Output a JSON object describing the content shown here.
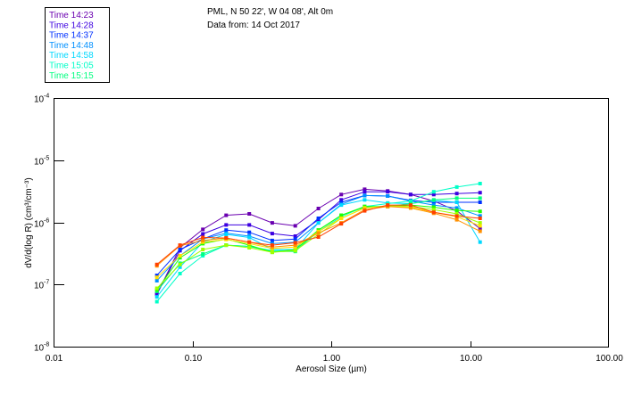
{
  "header": {
    "title_line1": "PML, N 50 22', W 04 08', Alt 0m",
    "title_line2": "Data from: 14 Oct 2017"
  },
  "chart_data": {
    "type": "line",
    "title": "PML, N 50 22', W 04 08', Alt 0m — Data from: 14 Oct 2017",
    "xlabel": "Aerosol Size (µm)",
    "ylabel": "dV/d(log R) (cm³/cm⁻³)",
    "xscale": "log",
    "yscale": "log",
    "xlim": [
      0.01,
      100
    ],
    "ylim": [
      1e-08,
      0.0001
    ],
    "x_ticks": [
      {
        "value": 0.01,
        "label": "0.01"
      },
      {
        "value": 0.1,
        "label": "0.10"
      },
      {
        "value": 1,
        "label": "1.00"
      },
      {
        "value": 10,
        "label": "10.00"
      },
      {
        "value": 100,
        "label": "100.00"
      }
    ],
    "y_ticks": [
      {
        "value": 0.0001,
        "base": "10",
        "exp": "-4"
      },
      {
        "value": 1e-05,
        "base": "10",
        "exp": "-5"
      },
      {
        "value": 1e-06,
        "base": "10",
        "exp": "-6"
      },
      {
        "value": 1e-07,
        "base": "10",
        "exp": "-7"
      },
      {
        "value": 1e-08,
        "base": "10",
        "exp": "-8"
      }
    ],
    "legend_position": "top-left",
    "grid": false,
    "x": [
      0.0555,
      0.0814,
      0.119,
      0.175,
      0.257,
      0.376,
      0.551,
      0.808,
      1.18,
      1.74,
      2.55,
      3.73,
      5.47,
      8.02,
      11.8
    ],
    "series": [
      {
        "name": "Time 14:23",
        "color": "#6a00b0",
        "values": [
          7e-08,
          3.9e-07,
          7.7e-07,
          1.3e-06,
          1.37e-06,
          9.8e-07,
          8.8e-07,
          1.67e-06,
          2.8e-06,
          3.4e-06,
          3.2e-06,
          2.8e-06,
          2.2e-06,
          1.53e-06,
          7.9e-07
        ]
      },
      {
        "name": "Time 14:28",
        "color": "#3c00e0",
        "values": [
          7e-08,
          3.5e-07,
          6.5e-07,
          9.1e-07,
          9.1e-07,
          6.6e-07,
          6e-07,
          1.1e-06,
          2.3e-06,
          3.1e-06,
          3.1e-06,
          2.8e-06,
          2.8e-06,
          2.9e-06,
          3e-06
        ]
      },
      {
        "name": "Time 14:37",
        "color": "#0030ff",
        "values": [
          1.4e-07,
          3.65e-07,
          5.4e-07,
          7.5e-07,
          6.9e-07,
          5.1e-07,
          5.4e-07,
          1.16e-06,
          2.1e-06,
          2.7e-06,
          2.65e-06,
          2.25e-06,
          2.1e-06,
          2.1e-06,
          2.1e-06
        ]
      },
      {
        "name": "Time 14:48",
        "color": "#0090ff",
        "values": [
          1.15e-07,
          2.9e-07,
          5.4e-07,
          6.7e-07,
          6e-07,
          4.55e-07,
          4.8e-07,
          9.8e-07,
          1.95e-06,
          2.7e-06,
          2.65e-06,
          2.2e-06,
          1.9e-06,
          1.7e-06,
          1.27e-06
        ]
      },
      {
        "name": "Time 14:58",
        "color": "#00d8ff",
        "values": [
          6.3e-08,
          1.9e-07,
          4.8e-07,
          6.4e-07,
          5.7e-07,
          3.65e-07,
          3.65e-07,
          9.8e-07,
          1.9e-06,
          2.3e-06,
          2.05e-06,
          2e-06,
          2.25e-06,
          2.1e-06,
          4.8e-07
        ]
      },
      {
        "name": "Time 15:05",
        "color": "#00ffc8",
        "values": [
          5.3e-08,
          1.5e-07,
          2.9e-07,
          4.3e-07,
          4.1e-07,
          3.5e-07,
          3.5e-07,
          7.1e-07,
          1.23e-06,
          1.8e-06,
          2e-06,
          2.2e-06,
          3.1e-06,
          3.7e-06,
          4.2e-06
        ]
      },
      {
        "name": "Time 15:15",
        "color": "#00ff80",
        "values": [
          7.8e-08,
          2.2e-07,
          3.1e-07,
          4.3e-07,
          4.1e-07,
          3.4e-07,
          3.4e-07,
          7.5e-07,
          1.3e-06,
          1.75e-06,
          1.8e-06,
          2e-06,
          2.3e-06,
          2.45e-06,
          2.45e-06
        ]
      },
      {
        "name": "",
        "color": "#20ff00",
        "values": [
          8.2e-08,
          2.7e-07,
          4.55e-07,
          5.4e-07,
          4.3e-07,
          3.3e-07,
          3.65e-07,
          7.5e-07,
          1.3e-06,
          1.8e-06,
          1.8e-06,
          1.9e-06,
          1.75e-06,
          1.55e-06,
          1.5e-06
        ]
      },
      {
        "name": "",
        "color": "#a0ff00",
        "values": [
          8.7e-08,
          2.1e-07,
          3.65e-07,
          4.3e-07,
          3.9e-07,
          3.3e-07,
          3.5e-07,
          6.4e-07,
          1.16e-06,
          1.7e-06,
          1.85e-06,
          1.8e-06,
          1.6e-06,
          1.37e-06,
          9.8e-07
        ]
      },
      {
        "name": "",
        "color": "#ffe000",
        "values": [
          1.3e-07,
          2.9e-07,
          4.8e-07,
          5.3e-07,
          4.55e-07,
          3.8e-07,
          4e-07,
          7.1e-07,
          1.16e-06,
          1.7e-06,
          1.8e-06,
          1.75e-06,
          1.45e-06,
          1.23e-06,
          8.8e-07
        ]
      },
      {
        "name": "",
        "color": "#ff9000",
        "values": [
          2e-07,
          4.2e-07,
          5.1e-07,
          5.6e-07,
          4.8e-07,
          4e-07,
          4.3e-07,
          6.7e-07,
          9.8e-07,
          1.6e-06,
          1.8e-06,
          1.7e-06,
          1.4e-06,
          1.1e-06,
          7.2e-07
        ]
      },
      {
        "name": "",
        "color": "#ff4000",
        "values": [
          2.1e-07,
          4.3e-07,
          5.7e-07,
          5.6e-07,
          4.8e-07,
          4.3e-07,
          4.7e-07,
          5.8e-07,
          9.5e-07,
          1.53e-06,
          1.9e-06,
          1.9e-06,
          1.45e-06,
          1.26e-06,
          1.16e-06
        ]
      }
    ]
  }
}
